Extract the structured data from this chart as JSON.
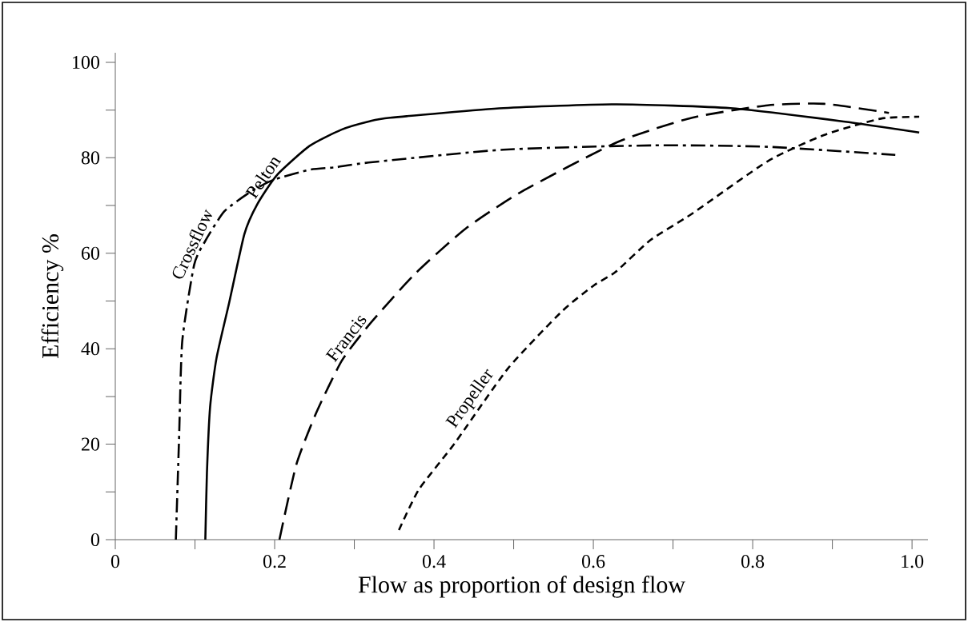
{
  "chart_data": {
    "type": "line",
    "xlabel": "Flow as proportion of design flow",
    "ylabel": "Efficiency %",
    "xlim": [
      0,
      1.02
    ],
    "ylim": [
      0,
      102
    ],
    "xticks": [
      0,
      {
        "value": 0.1,
        "label": null
      },
      0.2,
      {
        "value": 0.3,
        "label": null
      },
      0.4,
      {
        "value": 0.5,
        "label": null
      },
      0.6,
      {
        "value": 0.7,
        "label": null
      },
      0.8,
      {
        "value": 0.9,
        "label": null
      },
      {
        "value": 1,
        "label": "1.0"
      }
    ],
    "yticks": [
      0,
      {
        "value": 10,
        "label": null
      },
      20,
      {
        "value": 30,
        "label": null
      },
      40,
      {
        "value": 50,
        "label": null
      },
      60,
      {
        "value": 70,
        "label": null
      },
      80,
      {
        "value": 90,
        "label": null
      },
      100
    ],
    "grid": false,
    "marker": "none",
    "series": [
      {
        "name": "Pelton",
        "color": "#000000",
        "line_style": "solid",
        "x": [
          0.113,
          0.115,
          0.119,
          0.127,
          0.143,
          0.162,
          0.178,
          0.203,
          0.244,
          0.284,
          0.318,
          0.345,
          0.487,
          0.629,
          0.772,
          0.914,
          1.009
        ],
        "values": [
          0,
          14,
          27.8,
          38,
          49.7,
          64,
          70.2,
          76.4,
          82.5,
          85.9,
          87.6,
          88.4,
          90.4,
          91.2,
          90.4,
          87.6,
          85.3
        ]
      },
      {
        "name": "Crossflow",
        "color": "#000000",
        "line_style": "dashdot",
        "x": [
          0.076,
          0.08,
          0.084,
          0.099,
          0.113,
          0.137,
          0.17,
          0.199,
          0.244,
          0.276,
          0.318,
          0.487,
          0.676,
          0.819,
          0.979
        ],
        "values": [
          0,
          21,
          41.5,
          57.6,
          62.6,
          68.8,
          72.9,
          75.4,
          77.5,
          78,
          79,
          81.7,
          82.6,
          82.3,
          80.6
        ]
      },
      {
        "name": "Francis",
        "color": "#000000",
        "line_style": "dashed",
        "x": [
          0.206,
          0.227,
          0.252,
          0.284,
          0.318,
          0.375,
          0.44,
          0.511,
          0.629,
          0.724,
          0.819,
          0.89,
          0.971
        ],
        "values": [
          0,
          15.6,
          26.5,
          37.4,
          44.9,
          55.5,
          65.2,
          73,
          83.2,
          88.4,
          91,
          91.3,
          89.4
        ]
      },
      {
        "name": "Propeller",
        "color": "#000000",
        "line_style": "dotted",
        "x": [
          0.356,
          0.381,
          0.426,
          0.493,
          0.561,
          0.601,
          0.628,
          0.672,
          0.724,
          0.819,
          0.89,
          0.961,
          1.009
        ],
        "values": [
          2,
          10.5,
          20.2,
          35.9,
          47.9,
          53.3,
          56.1,
          62.8,
          68.3,
          79.3,
          84.8,
          88.2,
          88.6
        ]
      }
    ]
  }
}
